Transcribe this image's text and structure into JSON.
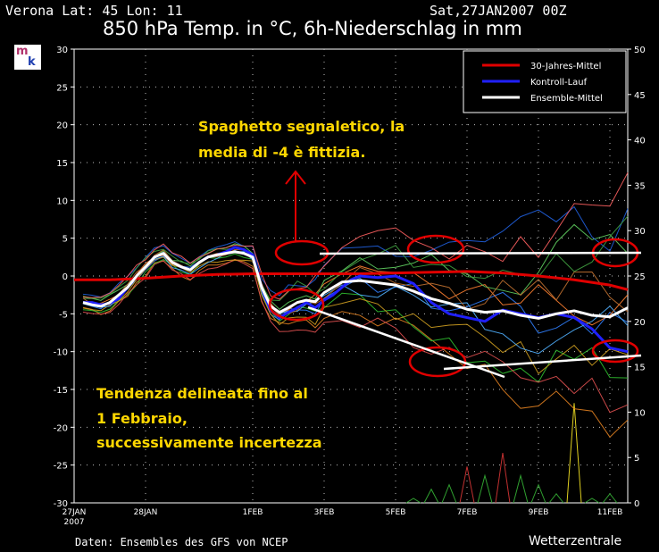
{
  "header": {
    "location": "Verona   Lat: 45 Lon: 11",
    "run": "Sat,27JAN2007 00Z",
    "title": "850 hPa Temp. in °C, 6h-Niederschlag in mm"
  },
  "footer": {
    "source": "Daten: Ensembles des GFS von NCEP",
    "brand": "Wetterzentrale"
  },
  "logo": {
    "letter_m": "m",
    "letter_k": "k",
    "colors": [
      "#b0306a",
      "#2040b0"
    ]
  },
  "legend": [
    {
      "label": "30-Jahres-Mittel",
      "color": "#e00000"
    },
    {
      "label": "Kontroll-Lauf",
      "color": "#2020ff"
    },
    {
      "label": "Ensemble-Mittel",
      "color": "#ffffff"
    }
  ],
  "annotations": {
    "spaghetti_line1": "Spaghetto segnaletico, la",
    "spaghetti_line2": "media di -4 è fittizia.",
    "trend_line1": "Tendenza delineata fino al",
    "trend_line2": "1 Febbraio,",
    "trend_line3": "successivamente incertezza",
    "color": "#ffd700"
  },
  "chart_data": {
    "type": "line",
    "title": "850 hPa Temp. in °C, 6h-Niederschlag in mm",
    "x_unit": "days since 27JAN2007 00Z",
    "xlim": [
      0,
      15.5
    ],
    "ylim_left": [
      -30,
      30
    ],
    "ylim_right": [
      0,
      50
    ],
    "grid": true,
    "left_ticks": [
      30,
      25,
      20,
      15,
      10,
      5,
      0,
      -5,
      -10,
      -15,
      -20,
      -25,
      -30
    ],
    "right_ticks": [
      50,
      45,
      40,
      35,
      30,
      25,
      20,
      15,
      10,
      5,
      0
    ],
    "x_ticks": [
      {
        "x": 0,
        "label": "27JAN",
        "sub": "2007"
      },
      {
        "x": 2,
        "label": "28JAN"
      },
      {
        "x": 5,
        "label": "1FEB"
      },
      {
        "x": 7,
        "label": "3FEB"
      },
      {
        "x": 9,
        "label": "5FEB"
      },
      {
        "x": 11,
        "label": "7FEB"
      },
      {
        "x": 13,
        "label": "9FEB"
      },
      {
        "x": 15,
        "label": "11FEB"
      }
    ],
    "series": [
      {
        "name": "30-Jahres-Mittel",
        "color": "#e00000",
        "width": 3,
        "x": [
          0,
          1,
          2,
          3,
          4,
          5,
          6,
          7,
          8,
          9,
          10,
          11,
          12,
          13,
          14,
          15,
          15.5
        ],
        "y": [
          -0.5,
          -0.5,
          -0.3,
          0,
          0.2,
          0.3,
          0.3,
          0.3,
          0.3,
          0.4,
          0.5,
          0.6,
          0.4,
          0,
          -0.5,
          -1.2,
          -1.8
        ]
      },
      {
        "name": "Kontroll-Lauf",
        "color": "#2020ff",
        "width": 3,
        "x": [
          0.25,
          0.5,
          0.75,
          1,
          1.25,
          1.5,
          1.75,
          2,
          2.25,
          2.5,
          2.75,
          3,
          3.25,
          3.5,
          3.75,
          4,
          4.25,
          4.5,
          4.75,
          5,
          5.25,
          5.5,
          5.75,
          6,
          6.25,
          6.5,
          6.75,
          7,
          7.25,
          7.5,
          7.75,
          8,
          8.5,
          9,
          9.5,
          10,
          10.5,
          11,
          11.5,
          12,
          12.5,
          13,
          13.5,
          14,
          14.5,
          15,
          15.5
        ],
        "y": [
          -3.5,
          -3.5,
          -3.8,
          -3.6,
          -3,
          -1.5,
          0,
          1.2,
          2.5,
          3,
          1.8,
          1.2,
          0.8,
          1.8,
          2.5,
          2.8,
          3.2,
          3.8,
          3.5,
          2.8,
          -1.5,
          -4.5,
          -5.5,
          -4.8,
          -4.2,
          -3.5,
          -4.2,
          -3.2,
          -2.5,
          -1.5,
          -0.5,
          0,
          -0.2,
          0,
          -1,
          -3.5,
          -5,
          -5.5,
          -6,
          -4.5,
          -5,
          -5.5,
          -5,
          -5.5,
          -7,
          -9.5,
          -10
        ]
      },
      {
        "name": "Ensemble-Mittel",
        "color": "#ffffff",
        "width": 3,
        "x": [
          0.25,
          0.5,
          0.75,
          1,
          1.25,
          1.5,
          1.75,
          2,
          2.25,
          2.5,
          2.75,
          3,
          3.25,
          3.5,
          3.75,
          4,
          4.25,
          4.5,
          4.75,
          5,
          5.25,
          5.5,
          5.75,
          6,
          6.25,
          6.5,
          6.75,
          7,
          7.5,
          8,
          8.5,
          9,
          9.5,
          10,
          10.5,
          11,
          11.5,
          12,
          12.5,
          13,
          13.5,
          14,
          14.5,
          15,
          15.5
        ],
        "y": [
          -3.5,
          -3.8,
          -4,
          -3.5,
          -2.5,
          -1.5,
          0,
          1.2,
          2.5,
          3,
          1.8,
          1.2,
          0.8,
          1.8,
          2.5,
          2.8,
          3,
          3.2,
          3,
          2.5,
          -1.5,
          -4,
          -4.8,
          -4.2,
          -3.5,
          -3.2,
          -3.4,
          -2.2,
          -0.8,
          -0.6,
          -0.9,
          -1.2,
          -2,
          -3,
          -3.6,
          -4.4,
          -4.8,
          -4.6,
          -5.2,
          -5.6,
          -5,
          -4.6,
          -5.2,
          -5.4,
          -4.2
        ]
      }
    ],
    "precipitation": [
      {
        "x": 9.5,
        "y": 0.5
      },
      {
        "x": 10,
        "y": 1.5
      },
      {
        "x": 10.5,
        "y": 2
      },
      {
        "x": 11,
        "y": 4
      },
      {
        "x": 11.5,
        "y": 3
      },
      {
        "x": 12,
        "y": 5.5
      },
      {
        "x": 12.5,
        "y": 3
      },
      {
        "x": 13,
        "y": 2
      },
      {
        "x": 13.5,
        "y": 1
      },
      {
        "x": 14,
        "y": 11
      },
      {
        "x": 14.5,
        "y": 0.5
      },
      {
        "x": 15,
        "y": 1
      }
    ]
  }
}
